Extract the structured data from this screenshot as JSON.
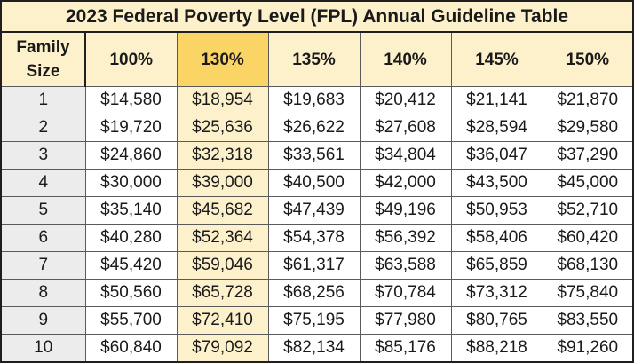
{
  "title": "2023 Federal Poverty Level (FPL) Annual Guideline Table",
  "family_size_header_line1": "Family",
  "family_size_header_line2": "Size",
  "highlight_column_index": 1,
  "colors": {
    "header_fill": "#fdf1cc",
    "highlight_header_fill": "#fbd466",
    "highlight_column_fill": "#fdf1cc",
    "family_size_fill": "#ececec"
  },
  "columns": [
    "100%",
    "130%",
    "135%",
    "140%",
    "145%",
    "150%"
  ],
  "rows": [
    {
      "size": "1",
      "values": [
        "$14,580",
        "$18,954",
        "$19,683",
        "$20,412",
        "$21,141",
        "$21,870"
      ]
    },
    {
      "size": "2",
      "values": [
        "$19,720",
        "$25,636",
        "$26,622",
        "$27,608",
        "$28,594",
        "$29,580"
      ]
    },
    {
      "size": "3",
      "values": [
        "$24,860",
        "$32,318",
        "$33,561",
        "$34,804",
        "$36,047",
        "$37,290"
      ]
    },
    {
      "size": "4",
      "values": [
        "$30,000",
        "$39,000",
        "$40,500",
        "$42,000",
        "$43,500",
        "$45,000"
      ]
    },
    {
      "size": "5",
      "values": [
        "$35,140",
        "$45,682",
        "$47,439",
        "$49,196",
        "$50,953",
        "$52,710"
      ]
    },
    {
      "size": "6",
      "values": [
        "$40,280",
        "$52,364",
        "$54,378",
        "$56,392",
        "$58,406",
        "$60,420"
      ]
    },
    {
      "size": "7",
      "values": [
        "$45,420",
        "$59,046",
        "$61,317",
        "$63,588",
        "$65,859",
        "$68,130"
      ]
    },
    {
      "size": "8",
      "values": [
        "$50,560",
        "$65,728",
        "$68,256",
        "$70,784",
        "$73,312",
        "$75,840"
      ]
    },
    {
      "size": "9",
      "values": [
        "$55,700",
        "$72,410",
        "$75,195",
        "$77,980",
        "$80,765",
        "$83,550"
      ]
    },
    {
      "size": "10",
      "values": [
        "$60,840",
        "$79,092",
        "$82,134",
        "$85,176",
        "$88,218",
        "$91,260"
      ]
    }
  ]
}
